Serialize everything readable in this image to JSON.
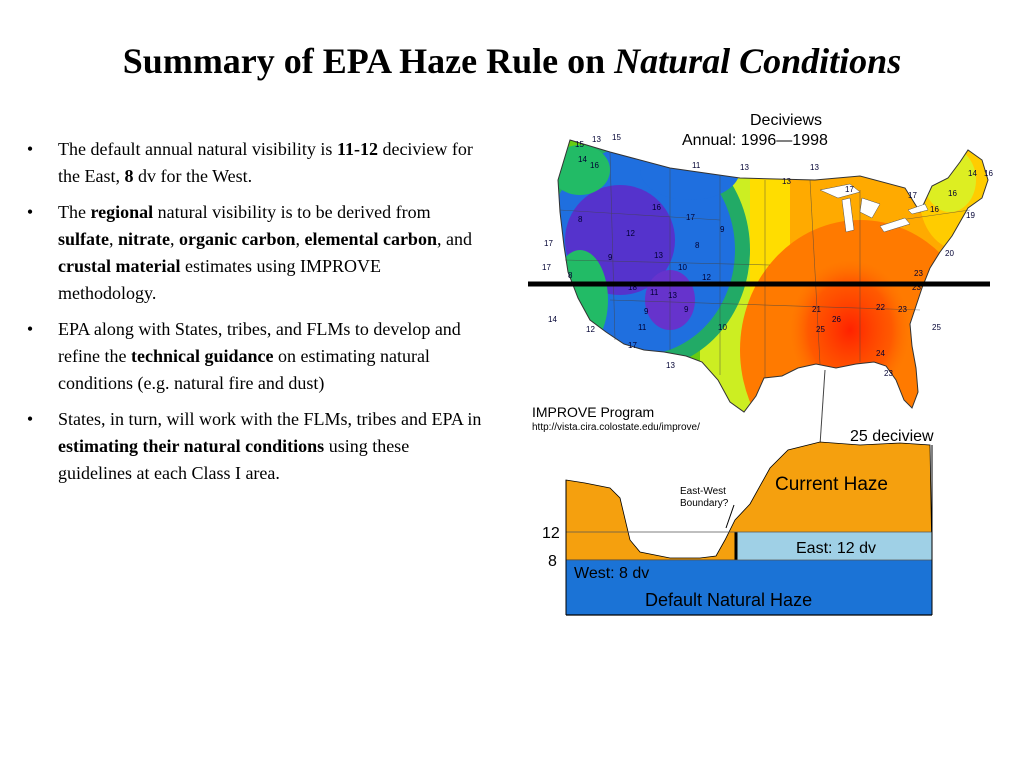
{
  "slide": {
    "title_part1": "Summary of EPA Haze Rule on ",
    "title_part2": "Natural Conditions"
  },
  "bullets": [
    {
      "segments": [
        {
          "text": "The default annual natural visibility is ",
          "bold": false
        },
        {
          "text": "11-12",
          "bold": true
        },
        {
          "text": " deciview for the East, ",
          "bold": false
        },
        {
          "text": "8",
          "bold": true
        },
        {
          "text": " dv for the West.",
          "bold": false
        }
      ]
    },
    {
      "segments": [
        {
          "text": "The ",
          "bold": false
        },
        {
          "text": "regional",
          "bold": true
        },
        {
          "text": " natural visibility is to be derived from ",
          "bold": false
        },
        {
          "text": "sulfate",
          "bold": true
        },
        {
          "text": ", ",
          "bold": false
        },
        {
          "text": "nitrate",
          "bold": true
        },
        {
          "text": ", ",
          "bold": false
        },
        {
          "text": "organic carbon",
          "bold": true
        },
        {
          "text": ", ",
          "bold": false
        },
        {
          "text": "elemental carbon",
          "bold": true
        },
        {
          "text": ", and ",
          "bold": false
        },
        {
          "text": "crustal material",
          "bold": true
        },
        {
          "text": " estimates using IMPROVE methodology.",
          "bold": false
        }
      ]
    },
    {
      "segments": [
        {
          "text": "EPA along with States, tribes, and FLMs to develop and refine the ",
          "bold": false
        },
        {
          "text": "technical guidance",
          "bold": true
        },
        {
          "text": " on estimating natural conditions (e.g. natural fire and dust)",
          "bold": false
        }
      ]
    },
    {
      "segments": [
        {
          "text": "States, in turn, will work with the FLMs, tribes and EPA in ",
          "bold": false
        },
        {
          "text": "estimating their natural conditions",
          "bold": true
        },
        {
          "text": " using these guidelines at each Class I area.",
          "bold": false
        }
      ]
    }
  ],
  "map": {
    "title_line1": "Deciviews",
    "title_line2": "Annual:  1996—1998",
    "source_name": "IMPROVE Program",
    "source_url": "http://vista.cira.colostate.edu/improve/",
    "site_labels": [
      "15",
      "13",
      "14",
      "16",
      "11",
      "13",
      "13",
      "17",
      "17",
      "16",
      "19",
      "16",
      "8",
      "12",
      "9",
      "8",
      "13",
      "18",
      "11",
      "9",
      "9",
      "12",
      "8",
      "9",
      "17",
      "17",
      "20",
      "23",
      "23",
      "22",
      "26",
      "25",
      "24",
      "23",
      "21",
      "25",
      "13",
      "10",
      "11",
      "12",
      "14",
      "17",
      "13",
      "10",
      "16",
      "17",
      "15",
      "23",
      "16",
      "14",
      "13"
    ]
  },
  "diagram": {
    "current_label": "25 deciview",
    "current_haze_label": "Current Haze",
    "boundary_label_line1": "East-West",
    "boundary_label_line2": "Boundary?",
    "tick_12": "12",
    "tick_8": "8",
    "east_label": "East: 12 dv",
    "west_label": "West: 8 dv",
    "default_label": "Default Natural Haze"
  },
  "colors": {
    "orange": "#f5a00e",
    "light_blue": "#9fd0e6",
    "blue": "#1b73d6"
  }
}
